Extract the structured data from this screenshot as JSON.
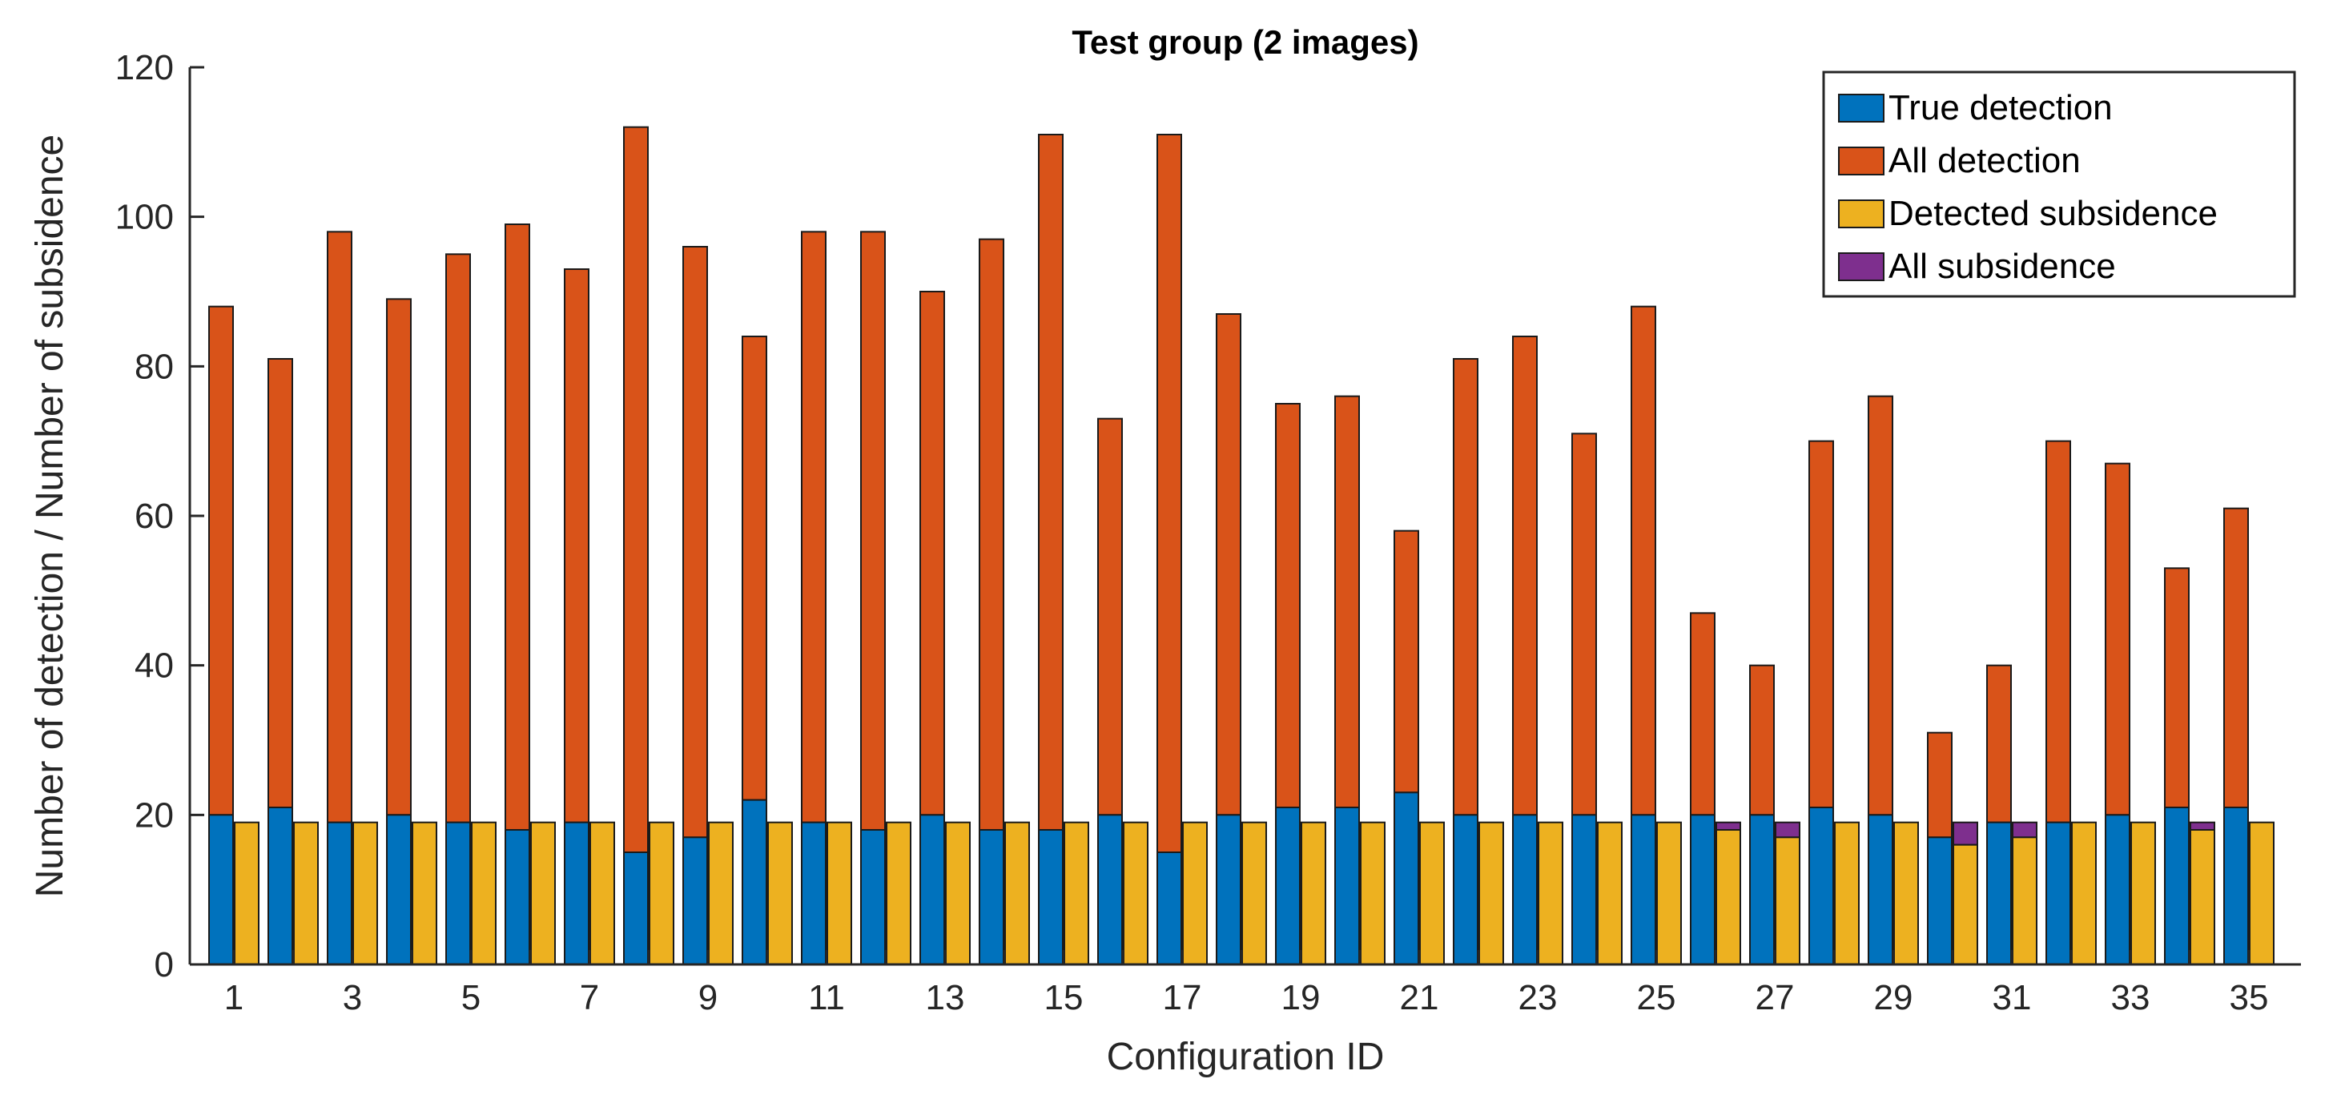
{
  "chart_data": {
    "type": "bar",
    "title": "Test group (2 images)",
    "xlabel": "Configuration ID",
    "ylabel": "Number of detection / Number of subsidence",
    "ylim": [
      0,
      120
    ],
    "yticks": [
      "0",
      "20",
      "40",
      "60",
      "80",
      "100",
      "120"
    ],
    "xtick_labels": [
      "1",
      "3",
      "5",
      "7",
      "9",
      "11",
      "13",
      "15",
      "17",
      "19",
      "21",
      "23",
      "25",
      "27",
      "29",
      "31",
      "33",
      "35"
    ],
    "categories": [
      1,
      2,
      3,
      4,
      5,
      6,
      7,
      8,
      9,
      10,
      11,
      12,
      13,
      14,
      15,
      16,
      17,
      18,
      19,
      20,
      21,
      22,
      23,
      24,
      25,
      26,
      27,
      28,
      29,
      30,
      31,
      32,
      33,
      34,
      35
    ],
    "grid": false,
    "legend_position": "top-right",
    "series": [
      {
        "name": "True detection",
        "color": "#0072BD",
        "stack": "detection",
        "values": [
          20,
          21,
          19,
          20,
          19,
          18,
          19,
          15,
          17,
          22,
          19,
          18,
          20,
          18,
          18,
          20,
          15,
          20,
          21,
          21,
          23,
          20,
          20,
          20,
          20,
          20,
          20,
          21,
          20,
          17,
          19,
          19,
          20,
          21,
          21
        ]
      },
      {
        "name": "All detection",
        "color": "#D95319",
        "stack": "detection",
        "values": [
          88,
          81,
          98,
          89,
          95,
          99,
          93,
          112,
          96,
          84,
          98,
          98,
          90,
          97,
          111,
          73,
          111,
          87,
          75,
          76,
          58,
          81,
          84,
          71,
          88,
          47,
          40,
          70,
          76,
          31,
          40,
          70,
          67,
          53,
          61
        ]
      },
      {
        "name": "Detected subsidence",
        "color": "#EDB120",
        "stack": "subsidence",
        "values": [
          19,
          19,
          19,
          19,
          19,
          19,
          19,
          19,
          19,
          19,
          19,
          19,
          19,
          19,
          19,
          19,
          19,
          19,
          19,
          19,
          19,
          19,
          19,
          19,
          19,
          18,
          17,
          19,
          19,
          16,
          17,
          19,
          19,
          18,
          19
        ]
      },
      {
        "name": "All subsidence",
        "color": "#7E2F8E",
        "stack": "subsidence",
        "values": [
          19,
          19,
          19,
          19,
          19,
          19,
          19,
          19,
          19,
          19,
          19,
          19,
          19,
          19,
          19,
          19,
          19,
          19,
          19,
          19,
          19,
          19,
          19,
          19,
          19,
          19,
          19,
          19,
          19,
          19,
          19,
          19,
          19,
          19,
          19
        ]
      }
    ]
  }
}
